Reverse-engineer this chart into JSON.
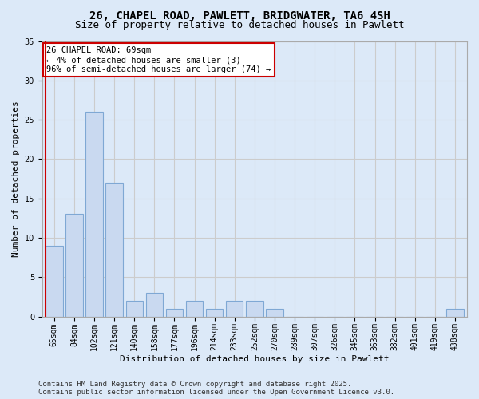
{
  "title_line1": "26, CHAPEL ROAD, PAWLETT, BRIDGWATER, TA6 4SH",
  "title_line2": "Size of property relative to detached houses in Pawlett",
  "xlabel": "Distribution of detached houses by size in Pawlett",
  "ylabel": "Number of detached properties",
  "categories": [
    "65sqm",
    "84sqm",
    "102sqm",
    "121sqm",
    "140sqm",
    "158sqm",
    "177sqm",
    "196sqm",
    "214sqm",
    "233sqm",
    "252sqm",
    "270sqm",
    "289sqm",
    "307sqm",
    "326sqm",
    "345sqm",
    "363sqm",
    "382sqm",
    "401sqm",
    "419sqm",
    "438sqm"
  ],
  "values": [
    9,
    13,
    26,
    17,
    2,
    3,
    1,
    2,
    1,
    2,
    2,
    1,
    0,
    0,
    0,
    0,
    0,
    0,
    0,
    0,
    1
  ],
  "bar_color": "#c9d9f0",
  "bar_edge_color": "#7fa8d4",
  "highlight_line_color": "#cc0000",
  "annotation_text": "26 CHAPEL ROAD: 69sqm\n← 4% of detached houses are smaller (3)\n96% of semi-detached houses are larger (74) →",
  "annotation_box_color": "#ffffff",
  "annotation_box_edge_color": "#cc0000",
  "grid_color": "#cccccc",
  "background_color": "#dce9f8",
  "plot_bg_color": "#dce9f8",
  "footer_text": "Contains HM Land Registry data © Crown copyright and database right 2025.\nContains public sector information licensed under the Open Government Licence v3.0.",
  "ylim": [
    0,
    35
  ],
  "yticks": [
    0,
    5,
    10,
    15,
    20,
    25,
    30,
    35
  ],
  "title_fontsize": 10,
  "subtitle_fontsize": 9,
  "axis_label_fontsize": 8,
  "tick_fontsize": 7,
  "annotation_fontsize": 7.5,
  "footer_fontsize": 6.5
}
